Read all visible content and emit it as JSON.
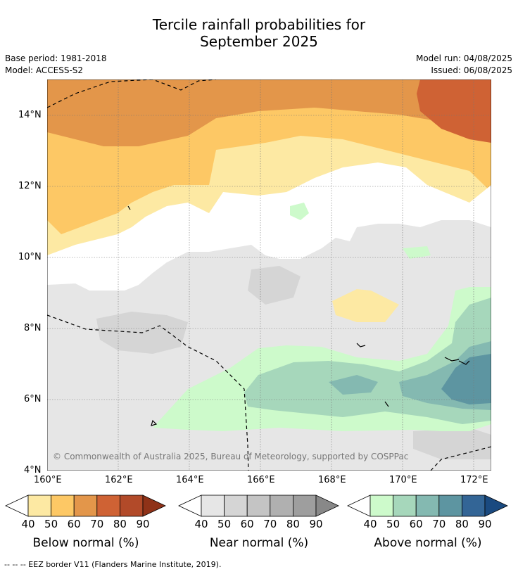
{
  "title": {
    "line1": "Tercile rainfall probabilities for",
    "line2": "September 2025"
  },
  "meta": {
    "base_period": "Base period: 1981-2018",
    "model": "Model: ACCESS-S2",
    "model_run": "Model run: 04/08/2025",
    "issued": "Issued: 06/08/2025"
  },
  "map": {
    "lat_labels": [
      "14°N",
      "12°N",
      "10°N",
      "8°N",
      "6°N",
      "4°N"
    ],
    "lon_labels": [
      "160°E",
      "162°E",
      "164°E",
      "166°E",
      "168°E",
      "170°E",
      "172°E"
    ],
    "copyright": "© Commonwealth of Australia 2025, Bureau of Meteorology, supported by COSPPac"
  },
  "colorbars": [
    {
      "title": "Below normal (%)",
      "ticks": [
        "40",
        "50",
        "60",
        "70",
        "80",
        "90"
      ],
      "colors": [
        "#fde9a3",
        "#fdc865",
        "#e3964a",
        "#cf6234",
        "#b24a29",
        "#8f3218"
      ]
    },
    {
      "title": "Near normal (%)",
      "ticks": [
        "40",
        "50",
        "60",
        "70",
        "80",
        "90"
      ],
      "colors": [
        "#e6e6e6",
        "#d5d5d5",
        "#c4c4c4",
        "#b0b0b0",
        "#9e9e9e",
        "#888888"
      ]
    },
    {
      "title": "Above normal (%)",
      "ticks": [
        "40",
        "50",
        "60",
        "70",
        "80",
        "90"
      ],
      "colors": [
        "#cdfacb",
        "#a6d7bb",
        "#84b9b1",
        "#5d95a1",
        "#336596",
        "#1a4a80"
      ]
    }
  ],
  "footnote": "--  --  -- EEZ border V11 (Flanders Marine Institute, 2019)."
}
